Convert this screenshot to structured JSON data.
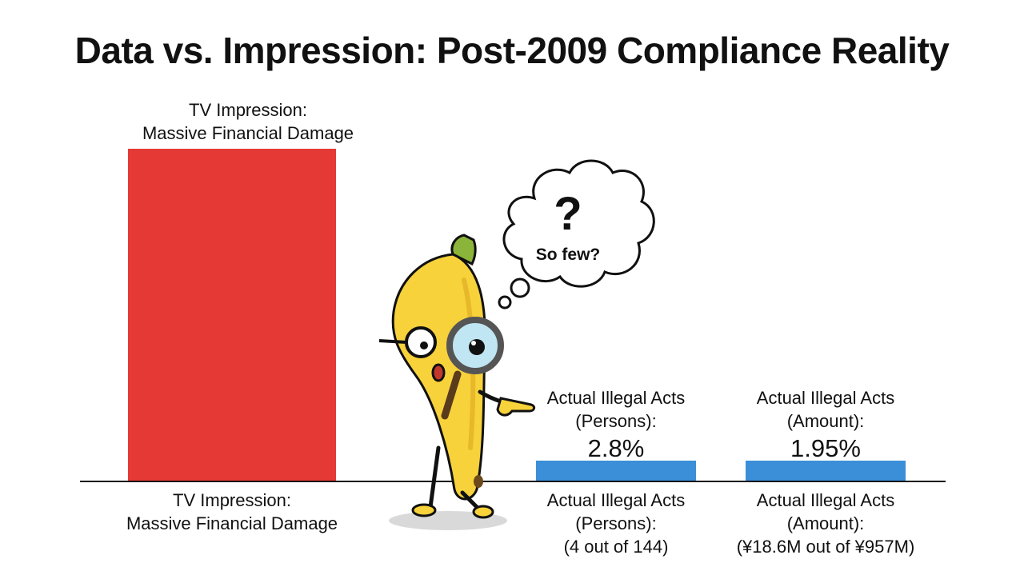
{
  "title": "Data vs. Impression: Post-2009 Compliance Reality",
  "chart_data": {
    "type": "bar",
    "title": "Data vs. Impression: Post-2009 Compliance Reality",
    "categories": [
      "TV Impression: Massive Financial Damage",
      "Actual Illegal Acts (Persons): (4 out of 144)",
      "Actual Illegal Acts (Amount): (¥18.6M out of ¥957M)"
    ],
    "values": [
      100,
      2.8,
      1.95
    ],
    "value_labels": [
      "",
      "2.8%",
      "1.95%"
    ],
    "colors": [
      "#e53935",
      "#3b8fd8",
      "#3b8fd8"
    ],
    "ylim": [
      0,
      100
    ],
    "grid": false,
    "legend": "none",
    "top_labels": [
      {
        "line1": "TV Impression:",
        "line2": "Massive Financial Damage",
        "value": ""
      },
      {
        "line1": "Actual Illegal Acts",
        "line2": "(Persons):",
        "value": "2.8%"
      },
      {
        "line1": "Actual Illegal Acts",
        "line2": "(Amount):",
        "value": "1.95%"
      }
    ],
    "bottom_labels": [
      {
        "line1": "TV Impression:",
        "line2": "Massive Financial Damage",
        "line3": ""
      },
      {
        "line1": "Actual Illegal Acts",
        "line2": "(Persons):",
        "line3": "(4 out of 144)"
      },
      {
        "line1": "Actual Illegal Acts",
        "line2": "(Amount):",
        "line3": "(¥18.6M out of ¥957M)"
      }
    ]
  },
  "illustration": {
    "character": "banana-with-magnifying-glass-icon",
    "thought_symbol": "?",
    "thought_text": "So few?"
  }
}
